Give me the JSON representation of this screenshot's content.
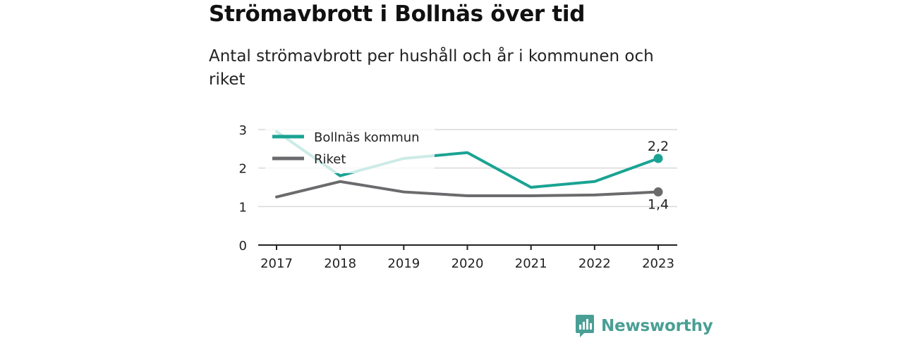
{
  "header": {
    "title": "Strömavbrott i Bollnäs över tid",
    "subtitle": "Antal strömavbrott per hushåll och år i kommunen och riket"
  },
  "brand": {
    "name": "Newsworthy",
    "icon": "newsworthy-logo-icon"
  },
  "colors": {
    "bollnas": "#1aa393",
    "riket": "#6b6b6e",
    "grid": "#d9d9d9",
    "axis": "#222222",
    "text": "#222222",
    "brand": "#4a9f95"
  },
  "chart_data": {
    "type": "line",
    "x": [
      "2017",
      "2018",
      "2019",
      "2020",
      "2021",
      "2022",
      "2023"
    ],
    "ylim": [
      0,
      3
    ],
    "yticks": [
      "0",
      "1",
      "2",
      "3"
    ],
    "grid": true,
    "legend_position": "top-left",
    "series": [
      {
        "name": "Bollnäs kommun",
        "values": [
          2.95,
          1.8,
          2.25,
          2.4,
          1.5,
          1.65,
          2.25
        ],
        "end_label": "2,2"
      },
      {
        "name": "Riket",
        "values": [
          1.25,
          1.65,
          1.38,
          1.28,
          1.28,
          1.3,
          1.38
        ],
        "end_label": "1,4"
      }
    ]
  }
}
